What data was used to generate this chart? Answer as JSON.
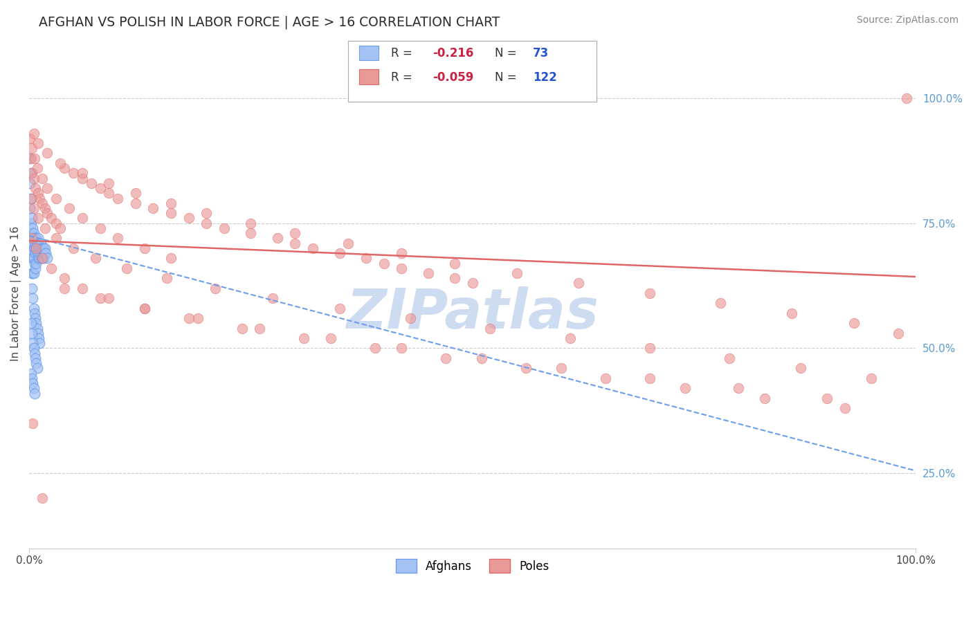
{
  "title": "AFGHAN VS POLISH IN LABOR FORCE | AGE > 16 CORRELATION CHART",
  "source_text": "Source: ZipAtlas.com",
  "ylabel": "In Labor Force | Age > 16",
  "legend_label1": "Afghans",
  "legend_label2": "Poles",
  "color_afghan": "#a4c2f4",
  "color_afghan_edge": "#6d9eeb",
  "color_polish": "#ea9999",
  "color_polish_edge": "#e06666",
  "color_afghan_line": "#6d9eeb",
  "color_polish_line": "#e06666",
  "background_color": "#ffffff",
  "grid_color": "#cccccc",
  "watermark_text": "ZIPatlas",
  "watermark_color": "#c9d9f0",
  "xlim": [
    0.0,
    1.0
  ],
  "ylim": [
    0.1,
    1.12
  ],
  "yticks": [
    0.25,
    0.5,
    0.75,
    1.0
  ],
  "yticklabels": [
    "25.0%",
    "50.0%",
    "75.0%",
    "100.0%"
  ],
  "figsize": [
    14.06,
    8.92
  ],
  "dpi": 100,
  "afghan_slope": -0.47,
  "afghan_intercept": 0.725,
  "polish_slope": -0.072,
  "polish_intercept": 0.715,
  "afghan_x": [
    0.001,
    0.001,
    0.001,
    0.002,
    0.002,
    0.002,
    0.002,
    0.003,
    0.003,
    0.003,
    0.003,
    0.003,
    0.004,
    0.004,
    0.004,
    0.004,
    0.005,
    0.005,
    0.005,
    0.005,
    0.006,
    0.006,
    0.006,
    0.007,
    0.007,
    0.007,
    0.008,
    0.008,
    0.008,
    0.009,
    0.009,
    0.01,
    0.01,
    0.01,
    0.011,
    0.011,
    0.012,
    0.012,
    0.013,
    0.013,
    0.014,
    0.014,
    0.015,
    0.015,
    0.016,
    0.016,
    0.017,
    0.018,
    0.019,
    0.02,
    0.003,
    0.004,
    0.005,
    0.006,
    0.007,
    0.008,
    0.009,
    0.01,
    0.011,
    0.012,
    0.002,
    0.003,
    0.004,
    0.005,
    0.006,
    0.007,
    0.008,
    0.009,
    0.002,
    0.003,
    0.004,
    0.005,
    0.006
  ],
  "afghan_y": [
    0.88,
    0.83,
    0.78,
    0.85,
    0.8,
    0.75,
    0.72,
    0.76,
    0.73,
    0.7,
    0.68,
    0.65,
    0.74,
    0.71,
    0.68,
    0.65,
    0.73,
    0.7,
    0.68,
    0.65,
    0.72,
    0.7,
    0.67,
    0.71,
    0.69,
    0.66,
    0.72,
    0.7,
    0.67,
    0.71,
    0.69,
    0.72,
    0.7,
    0.68,
    0.71,
    0.69,
    0.7,
    0.68,
    0.71,
    0.69,
    0.7,
    0.68,
    0.7,
    0.68,
    0.7,
    0.68,
    0.69,
    0.7,
    0.69,
    0.68,
    0.62,
    0.6,
    0.58,
    0.57,
    0.56,
    0.55,
    0.54,
    0.53,
    0.52,
    0.51,
    0.55,
    0.53,
    0.51,
    0.5,
    0.49,
    0.48,
    0.47,
    0.46,
    0.45,
    0.44,
    0.43,
    0.42,
    0.41
  ],
  "polish_x": [
    0.001,
    0.002,
    0.003,
    0.005,
    0.007,
    0.01,
    0.012,
    0.015,
    0.018,
    0.02,
    0.025,
    0.03,
    0.035,
    0.04,
    0.05,
    0.06,
    0.07,
    0.08,
    0.09,
    0.1,
    0.12,
    0.14,
    0.16,
    0.18,
    0.2,
    0.22,
    0.25,
    0.28,
    0.3,
    0.32,
    0.35,
    0.38,
    0.4,
    0.42,
    0.45,
    0.48,
    0.5,
    0.003,
    0.006,
    0.009,
    0.015,
    0.02,
    0.03,
    0.045,
    0.06,
    0.08,
    0.1,
    0.13,
    0.16,
    0.005,
    0.01,
    0.02,
    0.035,
    0.06,
    0.09,
    0.12,
    0.16,
    0.2,
    0.25,
    0.3,
    0.36,
    0.42,
    0.48,
    0.55,
    0.62,
    0.7,
    0.78,
    0.86,
    0.93,
    0.98,
    0.04,
    0.08,
    0.13,
    0.19,
    0.26,
    0.34,
    0.42,
    0.51,
    0.6,
    0.7,
    0.8,
    0.9,
    0.003,
    0.008,
    0.015,
    0.025,
    0.04,
    0.06,
    0.09,
    0.13,
    0.18,
    0.24,
    0.31,
    0.39,
    0.47,
    0.56,
    0.65,
    0.74,
    0.83,
    0.92,
    0.002,
    0.005,
    0.01,
    0.018,
    0.03,
    0.05,
    0.075,
    0.11,
    0.155,
    0.21,
    0.275,
    0.35,
    0.43,
    0.52,
    0.61,
    0.7,
    0.79,
    0.87,
    0.95,
    0.004,
    0.015,
    0.99
  ],
  "polish_y": [
    0.92,
    0.88,
    0.85,
    0.84,
    0.82,
    0.81,
    0.8,
    0.79,
    0.78,
    0.77,
    0.76,
    0.75,
    0.74,
    0.86,
    0.85,
    0.84,
    0.83,
    0.82,
    0.81,
    0.8,
    0.79,
    0.78,
    0.77,
    0.76,
    0.75,
    0.74,
    0.73,
    0.72,
    0.71,
    0.7,
    0.69,
    0.68,
    0.67,
    0.66,
    0.65,
    0.64,
    0.63,
    0.9,
    0.88,
    0.86,
    0.84,
    0.82,
    0.8,
    0.78,
    0.76,
    0.74,
    0.72,
    0.7,
    0.68,
    0.93,
    0.91,
    0.89,
    0.87,
    0.85,
    0.83,
    0.81,
    0.79,
    0.77,
    0.75,
    0.73,
    0.71,
    0.69,
    0.67,
    0.65,
    0.63,
    0.61,
    0.59,
    0.57,
    0.55,
    0.53,
    0.62,
    0.6,
    0.58,
    0.56,
    0.54,
    0.52,
    0.5,
    0.48,
    0.46,
    0.44,
    0.42,
    0.4,
    0.72,
    0.7,
    0.68,
    0.66,
    0.64,
    0.62,
    0.6,
    0.58,
    0.56,
    0.54,
    0.52,
    0.5,
    0.48,
    0.46,
    0.44,
    0.42,
    0.4,
    0.38,
    0.8,
    0.78,
    0.76,
    0.74,
    0.72,
    0.7,
    0.68,
    0.66,
    0.64,
    0.62,
    0.6,
    0.58,
    0.56,
    0.54,
    0.52,
    0.5,
    0.48,
    0.46,
    0.44,
    0.35,
    0.2,
    1.0
  ]
}
